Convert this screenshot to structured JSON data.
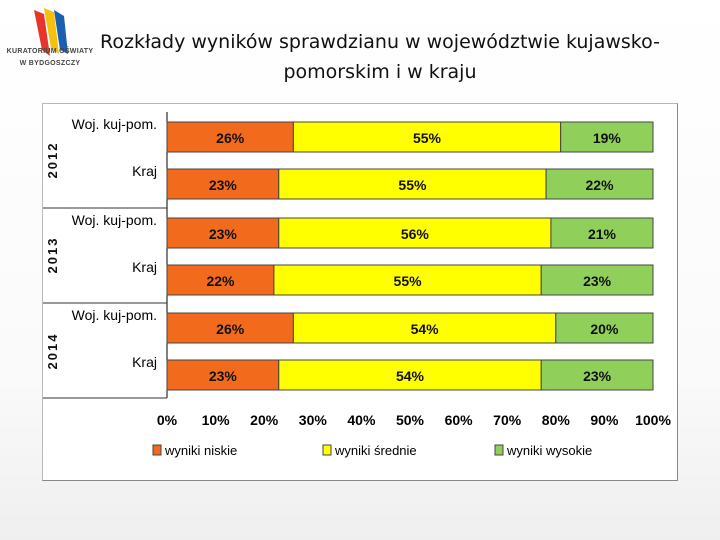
{
  "logo": {
    "line1": "KURATORIUM OŚWIATY",
    "line2": "W BYDGOSZCZY",
    "colors": [
      "#e8352b",
      "#f4c20d",
      "#1b5fb0"
    ]
  },
  "header": {
    "title_line1": "Rozkłady wyników sprawdzianu w województwie kujawsko-",
    "title_line2": "pomorskim i w kraju"
  },
  "chart_data": {
    "type": "bar",
    "orientation": "horizontal",
    "stacked": "percent",
    "groups": [
      {
        "year": "2012",
        "rows": [
          {
            "label": "Woj. kuj-pom.",
            "values": [
              26,
              55,
              19
            ]
          },
          {
            "label": "Kraj",
            "values": [
              23,
              55,
              22
            ]
          }
        ]
      },
      {
        "year": "2013",
        "rows": [
          {
            "label": "Woj. kuj-pom.",
            "values": [
              23,
              56,
              21
            ]
          },
          {
            "label": "Kraj",
            "values": [
              22,
              55,
              23
            ]
          }
        ]
      },
      {
        "year": "2014",
        "rows": [
          {
            "label": "Woj. kuj-pom.",
            "values": [
              26,
              54,
              20
            ]
          },
          {
            "label": "Kraj",
            "values": [
              23,
              54,
              23
            ]
          }
        ]
      }
    ],
    "series": [
      {
        "name": "wyniki niskie",
        "color": "#f26a1b"
      },
      {
        "name": "wyniki średnie",
        "color": "#ffff00"
      },
      {
        "name": "wyniki wysokie",
        "color": "#8fcf5a"
      }
    ],
    "xticks": [
      "0%",
      "10%",
      "20%",
      "30%",
      "40%",
      "50%",
      "60%",
      "70%",
      "80%",
      "90%",
      "100%"
    ],
    "xlim": [
      0,
      100
    ],
    "legend_position": "bottom"
  }
}
